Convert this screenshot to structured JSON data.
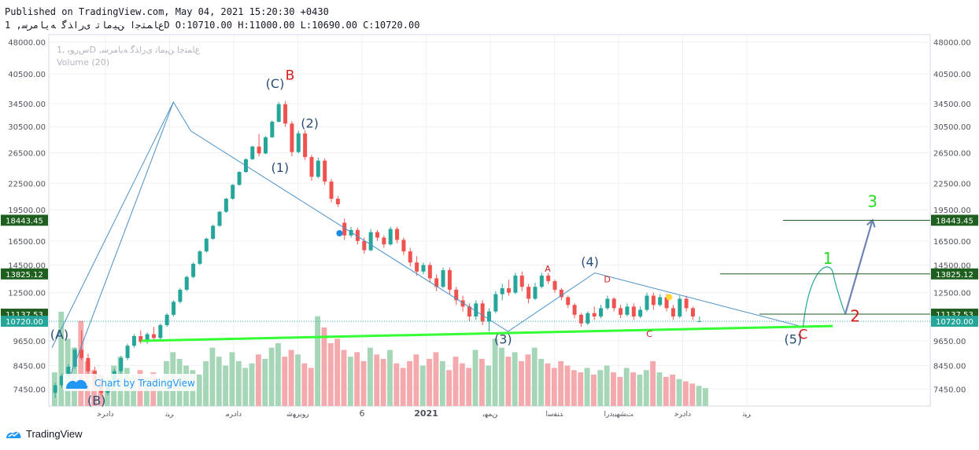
{
  "header": {
    "line1": "Published on TradingView.com, May 04, 2021 15:20:30 +0430",
    "line2": "ﻉﺎﻤﺘﺟﺍ ﻦﯿﻣﺎﺗ ﯼﺭﺍﺬﮔ ﻪﯾﺎﻣﺮﺳ, 1D O:10710.00 H:11000.00 L:10690.00 C:10720.00"
  },
  "watermark": {
    "title": "ﺱﺭﻮﺑ ,1D ,ﻉﺎﻤﺘﺟﺍ ﻦﯿﻣﺎﺗ ﯼﺭﺍﺬﮔ ﻪﯾﺎﻣﺮﺳ",
    "volume": "Volume (20)"
  },
  "chart_by": "Chart by TradingView",
  "footer_brand": "TradingView",
  "chart_data": {
    "type": "candlestick",
    "price_axis": {
      "scale": "log",
      "ticks": [
        "48000.00",
        "40500.00",
        "34500.00",
        "30500.00",
        "26500.00",
        "22500.00",
        "19500.00",
        "16500.00",
        "14500.00",
        "12500.00",
        "9650.00",
        "8450.00",
        "7450.00"
      ],
      "range": [
        6800,
        50000
      ]
    },
    "time_axis": [
      "ﺩﺍﺩﺮﺧ",
      "ﺮﯿﺗ",
      "ﺩﺍﺩﺮﻣ",
      "ﺭﻮﯾﺮﻬﺷ",
      "6",
      "2021",
      "ﻦﻤﻬﺑ",
      "ﺪﻨﻔﺳﺍ",
      "ﺖﺸﻬﺒﯾﺩﺭﺍ",
      "ﺩﺍﺩﺮﺧ",
      "ﺮﯿﺗ"
    ],
    "price_labels": [
      {
        "value": 18443.45,
        "text": "18443.45",
        "color": "#1e5e1e"
      },
      {
        "value": 13825.12,
        "text": "13825.12",
        "color": "#1e5e1e"
      },
      {
        "value": 11137.53,
        "text": "11137.53",
        "color": "#1e5e1e"
      },
      {
        "value": 10720.0,
        "text": "10720.00",
        "color": "#26a69a"
      }
    ],
    "ohlc_last": {
      "open": 10710,
      "high": 11000,
      "low": 10690,
      "close": 10720
    },
    "wave_path": [
      [
        0.0,
        9300
      ],
      [
        4.9,
        34800
      ],
      [
        5.6,
        29800
      ],
      [
        18.4,
        10150
      ],
      [
        21.9,
        13900
      ],
      [
        30.3,
        10400
      ]
    ],
    "wave_start": [
      [
        0.7,
        7900
      ],
      [
        4.9,
        34800
      ]
    ],
    "support_line": [
      [
        3.6,
        9650
      ],
      [
        31.5,
        10450
      ]
    ],
    "projection": [
      [
        30.3,
        10400
      ],
      [
        31.2,
        13825
      ],
      [
        32.0,
        11137
      ],
      [
        33.1,
        18443
      ]
    ],
    "wave_labels": [
      {
        "text": "(A)",
        "t": 0.3,
        "price": 9750,
        "color": "#2a4e73"
      },
      {
        "text": "(B)",
        "t": 1.8,
        "price": 6850,
        "color": "#2a4e73"
      },
      {
        "text": "(C)",
        "t": 9.0,
        "price": 37500,
        "color": "#2a4e73"
      },
      {
        "text": "B",
        "t": 9.6,
        "price": 39200,
        "color": "#d41b1b"
      },
      {
        "text": "(2)",
        "t": 10.4,
        "price": 30300,
        "color": "#2a4e73"
      },
      {
        "text": "(1)",
        "t": 9.2,
        "price": 23900,
        "color": "#2a4e73"
      },
      {
        "text": "(3)",
        "t": 18.2,
        "price": 9500,
        "color": "#2a4e73"
      },
      {
        "text": "(4)",
        "t": 21.7,
        "price": 14400,
        "color": "#2a4e73"
      },
      {
        "text": "A",
        "t": 20.0,
        "price": 14000,
        "color": "#d41b1b"
      },
      {
        "text": "D",
        "t": 22.4,
        "price": 13200,
        "color": "#d41b1b"
      },
      {
        "text": "C",
        "t": 24.1,
        "price": 9850,
        "color": "#d41b1b"
      },
      {
        "text": "(5)",
        "t": 29.9,
        "price": 9500,
        "color": "#2a4e73"
      },
      {
        "text": "C",
        "t": 30.3,
        "price": 9750,
        "color": "#d41b1b"
      },
      {
        "text": "1",
        "t": 31.3,
        "price": 14600,
        "color": "#22dd22"
      },
      {
        "text": "2",
        "t": 32.4,
        "price": 10700,
        "color": "#d41b1b"
      },
      {
        "text": "3",
        "t": 33.1,
        "price": 19800,
        "color": "#22dd22"
      }
    ],
    "markers": [
      {
        "t": 11.6,
        "price": 17200,
        "color": "#1e88e5"
      },
      {
        "t": 24.9,
        "price": 12200,
        "color": "#fdd835"
      }
    ],
    "candles": [
      {
        "o": 7300,
        "h": 7700,
        "l": 7100,
        "c": 7600
      },
      {
        "o": 7600,
        "h": 8100,
        "l": 7500,
        "c": 8000
      },
      {
        "o": 8000,
        "h": 8500,
        "l": 7900,
        "c": 8400
      },
      {
        "o": 8400,
        "h": 9300,
        "l": 8300,
        "c": 9200
      },
      {
        "o": 9200,
        "h": 10200,
        "l": 8700,
        "c": 8800
      },
      {
        "o": 8800,
        "h": 9000,
        "l": 8100,
        "c": 8200
      },
      {
        "o": 8200,
        "h": 8400,
        "l": 7600,
        "c": 7700
      },
      {
        "o": 7700,
        "h": 7900,
        "l": 7200,
        "c": 7300
      },
      {
        "o": 7300,
        "h": 7700,
        "l": 7200,
        "c": 7600
      },
      {
        "o": 7600,
        "h": 8300,
        "l": 7500,
        "c": 8200
      },
      {
        "o": 8200,
        "h": 8900,
        "l": 8100,
        "c": 8800
      },
      {
        "o": 8800,
        "h": 9500,
        "l": 8700,
        "c": 9400
      },
      {
        "o": 9400,
        "h": 10000,
        "l": 9300,
        "c": 9900
      },
      {
        "o": 9900,
        "h": 10200,
        "l": 9500,
        "c": 9600
      },
      {
        "o": 9600,
        "h": 10100,
        "l": 9500,
        "c": 10000
      },
      {
        "o": 10000,
        "h": 10400,
        "l": 9700,
        "c": 9800
      },
      {
        "o": 9800,
        "h": 10600,
        "l": 9700,
        "c": 10500
      },
      {
        "o": 10500,
        "h": 11200,
        "l": 10400,
        "c": 11100
      },
      {
        "o": 11100,
        "h": 12000,
        "l": 11000,
        "c": 11900
      },
      {
        "o": 11900,
        "h": 12800,
        "l": 11800,
        "c": 12700
      },
      {
        "o": 12700,
        "h": 13700,
        "l": 12600,
        "c": 13600
      },
      {
        "o": 13600,
        "h": 14700,
        "l": 13500,
        "c": 14600
      },
      {
        "o": 14600,
        "h": 15700,
        "l": 14500,
        "c": 15600
      },
      {
        "o": 15600,
        "h": 16800,
        "l": 15500,
        "c": 16700
      },
      {
        "o": 16700,
        "h": 18000,
        "l": 16600,
        "c": 17900
      },
      {
        "o": 17900,
        "h": 19400,
        "l": 17800,
        "c": 19300
      },
      {
        "o": 19300,
        "h": 20800,
        "l": 19200,
        "c": 20700
      },
      {
        "o": 20700,
        "h": 22400,
        "l": 20600,
        "c": 22300
      },
      {
        "o": 22300,
        "h": 24000,
        "l": 22200,
        "c": 23900
      },
      {
        "o": 23900,
        "h": 25700,
        "l": 23800,
        "c": 25600
      },
      {
        "o": 25600,
        "h": 27500,
        "l": 25500,
        "c": 27400
      },
      {
        "o": 27400,
        "h": 29300,
        "l": 26000,
        "c": 26400
      },
      {
        "o": 26400,
        "h": 29000,
        "l": 26300,
        "c": 28800
      },
      {
        "o": 28800,
        "h": 31500,
        "l": 28700,
        "c": 31300
      },
      {
        "o": 31300,
        "h": 34800,
        "l": 31200,
        "c": 34400
      },
      {
        "o": 34400,
        "h": 35000,
        "l": 30500,
        "c": 31000
      },
      {
        "o": 31000,
        "h": 31400,
        "l": 26000,
        "c": 26600
      },
      {
        "o": 26600,
        "h": 29800,
        "l": 26400,
        "c": 29400
      },
      {
        "o": 29400,
        "h": 29900,
        "l": 25500,
        "c": 25900
      },
      {
        "o": 25900,
        "h": 26200,
        "l": 22800,
        "c": 23300
      },
      {
        "o": 23300,
        "h": 25800,
        "l": 23100,
        "c": 25400
      },
      {
        "o": 25400,
        "h": 25700,
        "l": 22300,
        "c": 22700
      },
      {
        "o": 22700,
        "h": 23000,
        "l": 20300,
        "c": 20700
      },
      {
        "o": 20700,
        "h": 21000,
        "l": 19800,
        "c": 20100
      },
      {
        "o": 18200,
        "h": 18600,
        "l": 16600,
        "c": 17000
      },
      {
        "o": 17000,
        "h": 17800,
        "l": 16800,
        "c": 17500
      },
      {
        "o": 17500,
        "h": 17700,
        "l": 16200,
        "c": 16500
      },
      {
        "o": 16500,
        "h": 16800,
        "l": 15400,
        "c": 15700
      },
      {
        "o": 15700,
        "h": 17600,
        "l": 15600,
        "c": 17300
      },
      {
        "o": 17300,
        "h": 17500,
        "l": 16500,
        "c": 16800
      },
      {
        "o": 16800,
        "h": 17000,
        "l": 15900,
        "c": 16200
      },
      {
        "o": 16200,
        "h": 17800,
        "l": 16100,
        "c": 17600
      },
      {
        "o": 17600,
        "h": 17800,
        "l": 16300,
        "c": 16600
      },
      {
        "o": 16600,
        "h": 16800,
        "l": 15300,
        "c": 15600
      },
      {
        "o": 15600,
        "h": 15900,
        "l": 14400,
        "c": 14700
      },
      {
        "o": 14700,
        "h": 15200,
        "l": 13700,
        "c": 14000
      },
      {
        "o": 14000,
        "h": 14700,
        "l": 13800,
        "c": 14500
      },
      {
        "o": 14500,
        "h": 14700,
        "l": 13200,
        "c": 13500
      },
      {
        "o": 13500,
        "h": 13800,
        "l": 12600,
        "c": 12900
      },
      {
        "o": 12900,
        "h": 14300,
        "l": 12800,
        "c": 14100
      },
      {
        "o": 14100,
        "h": 14300,
        "l": 12400,
        "c": 12700
      },
      {
        "o": 12700,
        "h": 12900,
        "l": 11700,
        "c": 12000
      },
      {
        "o": 12000,
        "h": 12300,
        "l": 11300,
        "c": 11600
      },
      {
        "o": 11600,
        "h": 11800,
        "l": 10700,
        "c": 11000
      },
      {
        "o": 11000,
        "h": 12000,
        "l": 10800,
        "c": 11800
      },
      {
        "o": 11800,
        "h": 12000,
        "l": 10500,
        "c": 10700
      },
      {
        "o": 10700,
        "h": 11500,
        "l": 10150,
        "c": 11300
      },
      {
        "o": 11300,
        "h": 12600,
        "l": 11200,
        "c": 12400
      },
      {
        "o": 12400,
        "h": 13100,
        "l": 12000,
        "c": 12800
      },
      {
        "o": 12800,
        "h": 13400,
        "l": 12300,
        "c": 12500
      },
      {
        "o": 12500,
        "h": 13900,
        "l": 12400,
        "c": 13700
      },
      {
        "o": 13700,
        "h": 14000,
        "l": 12600,
        "c": 12900
      },
      {
        "o": 12900,
        "h": 13100,
        "l": 11800,
        "c": 12100
      },
      {
        "o": 12100,
        "h": 13200,
        "l": 12000,
        "c": 12900
      },
      {
        "o": 12900,
        "h": 13900,
        "l": 12800,
        "c": 13700
      },
      {
        "o": 13700,
        "h": 13900,
        "l": 13100,
        "c": 13300
      },
      {
        "o": 13300,
        "h": 13400,
        "l": 12500,
        "c": 12700
      },
      {
        "o": 12700,
        "h": 12800,
        "l": 12000,
        "c": 12200
      },
      {
        "o": 12200,
        "h": 12300,
        "l": 11500,
        "c": 11700
      },
      {
        "o": 11700,
        "h": 11800,
        "l": 10900,
        "c": 11100
      },
      {
        "o": 11100,
        "h": 11200,
        "l": 10400,
        "c": 10600
      },
      {
        "o": 10600,
        "h": 11300,
        "l": 10500,
        "c": 11200
      },
      {
        "o": 11200,
        "h": 11600,
        "l": 10800,
        "c": 11000
      },
      {
        "o": 11000,
        "h": 11700,
        "l": 10900,
        "c": 11500
      },
      {
        "o": 11500,
        "h": 12300,
        "l": 11400,
        "c": 12100
      },
      {
        "o": 12100,
        "h": 12200,
        "l": 11300,
        "c": 11500
      },
      {
        "o": 11500,
        "h": 11700,
        "l": 10900,
        "c": 11100
      },
      {
        "o": 11100,
        "h": 11800,
        "l": 11000,
        "c": 11600
      },
      {
        "o": 11600,
        "h": 11800,
        "l": 10800,
        "c": 11000
      },
      {
        "o": 11000,
        "h": 11600,
        "l": 10900,
        "c": 11400
      },
      {
        "o": 11400,
        "h": 12500,
        "l": 11300,
        "c": 12300
      },
      {
        "o": 12300,
        "h": 12500,
        "l": 11400,
        "c": 11700
      },
      {
        "o": 11700,
        "h": 12400,
        "l": 11600,
        "c": 12200
      },
      {
        "o": 12200,
        "h": 12400,
        "l": 11300,
        "c": 11500
      },
      {
        "o": 11500,
        "h": 11700,
        "l": 10800,
        "c": 11000
      },
      {
        "o": 11000,
        "h": 12300,
        "l": 10900,
        "c": 12100
      },
      {
        "o": 12100,
        "h": 12300,
        "l": 11300,
        "c": 11500
      },
      {
        "o": 11500,
        "h": 11600,
        "l": 10800,
        "c": 11000
      },
      {
        "o": 10710,
        "h": 11000,
        "l": 10690,
        "c": 10720
      }
    ],
    "volume": [
      150,
      420,
      300,
      260,
      380,
      200,
      160,
      140,
      120,
      180,
      220,
      170,
      140,
      160,
      130,
      150,
      120,
      200,
      240,
      210,
      180,
      160,
      140,
      200,
      260,
      220,
      180,
      240,
      200,
      170,
      190,
      230,
      210,
      260,
      280,
      220,
      250,
      230,
      190,
      170,
      400,
      350,
      280,
      300,
      250,
      220,
      240,
      200,
      260,
      230,
      210,
      250,
      190,
      170,
      200,
      230,
      180,
      210,
      240,
      200,
      160,
      220,
      190,
      170,
      250,
      210,
      180,
      300,
      260,
      220,
      240,
      200,
      230,
      260,
      210,
      190,
      170,
      200,
      180,
      160,
      150,
      170,
      140,
      160,
      180,
      150,
      130,
      170,
      150,
      140,
      160,
      200,
      150,
      130,
      140,
      120,
      110,
      100,
      90,
      80
    ],
    "volume_up_color": "#a5d6b8",
    "volume_down_color": "#f4a9ad",
    "candle_up_color": "#26a69a",
    "candle_down_color": "#ef5350"
  }
}
